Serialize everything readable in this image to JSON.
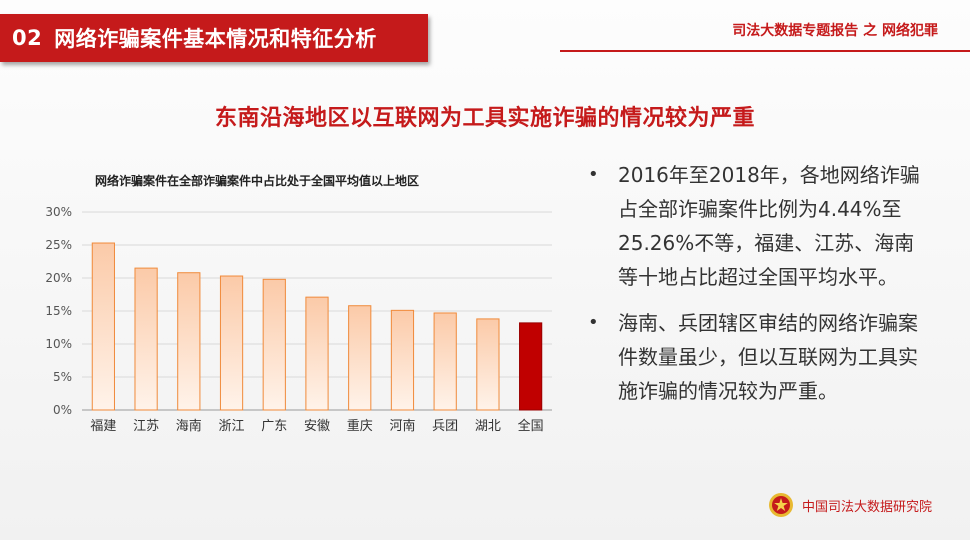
{
  "header": {
    "num": "02",
    "title": "网络诈骗案件基本情况和特征分析"
  },
  "report_title": "司法大数据专题报告 之 网络犯罪",
  "headline": "东南沿海地区以互联网为工具实施诈骗的情况较为严重",
  "bullets": [
    "2016年至2018年，各地网络诈骗占全部诈骗案件比例为4.44%至25.26%不等，福建、江苏、海南等十地占比超过全国平均水平。",
    "海南、兵团辖区审结的网络诈骗案件数量虽少，但以互联网为工具实施诈骗的情况较为严重。"
  ],
  "bullet_marker": "•",
  "footer": {
    "org": "中国司法大数据研究院"
  },
  "colors": {
    "accent": "#c51a1b",
    "bar_light": "#fde3d2",
    "bar_edge": "#f08a3a",
    "national": "#c00000"
  },
  "chart_data": {
    "type": "bar",
    "title": "网络诈骗案件在全部诈骗案件中占比处于全国平均值以上地区",
    "categories": [
      "福建",
      "江苏",
      "海南",
      "浙江",
      "广东",
      "安徽",
      "重庆",
      "河南",
      "兵团",
      "湖北",
      "全国"
    ],
    "values": [
      25.3,
      21.5,
      20.8,
      20.3,
      19.8,
      17.1,
      15.8,
      15.1,
      14.7,
      13.8,
      13.2
    ],
    "highlight": "全国",
    "ylim": [
      0,
      30
    ],
    "yticks": [
      "0%",
      "5%",
      "10%",
      "15%",
      "20%",
      "25%",
      "30%"
    ],
    "grid": true,
    "legend": "none"
  }
}
